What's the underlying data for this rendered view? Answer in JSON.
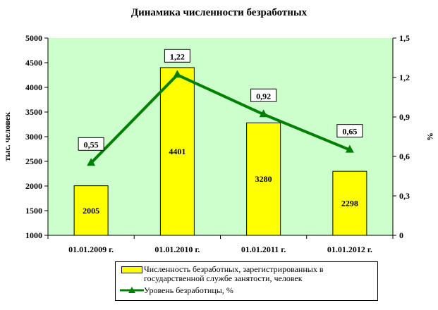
{
  "chart_data": {
    "type": "bar",
    "title": "Динамика численности безработных",
    "categories": [
      "01.01.2009 г.",
      "01.01.2010 г.",
      "01.01.2011 г.",
      "01.01.2012 г."
    ],
    "ylabel": "тыс. человек",
    "ylabel_right": "%",
    "ylim": [
      1000,
      5000
    ],
    "ylim_right": [
      0,
      1.5
    ],
    "yticks": [
      "1000",
      "1500",
      "2000",
      "2500",
      "3000",
      "3500",
      "4000",
      "4500",
      "5000"
    ],
    "yticks_right": [
      "0",
      "0,3",
      "0,6",
      "0,9",
      "1,2",
      "1,5"
    ],
    "grid": false,
    "legend_position": "bottom",
    "series": [
      {
        "name": "Численность безработных, зарегистрированных в государственной службе занятости, человек",
        "type": "bar",
        "values": [
          2005,
          4401,
          3280,
          2298
        ],
        "labels": [
          "2005",
          "4401",
          "3280",
          "2298"
        ],
        "color": "#ffff00"
      },
      {
        "name": "Уровень безработицы, %",
        "type": "line",
        "axis": "right",
        "values": [
          0.55,
          1.22,
          0.92,
          0.65
        ],
        "labels": [
          "0,55",
          "1,22",
          "0,92",
          "0,65"
        ],
        "color": "#008000"
      }
    ],
    "colors": {
      "plot_background": "#ccffcc",
      "bar": "#ffff00",
      "line": "#008000"
    }
  }
}
